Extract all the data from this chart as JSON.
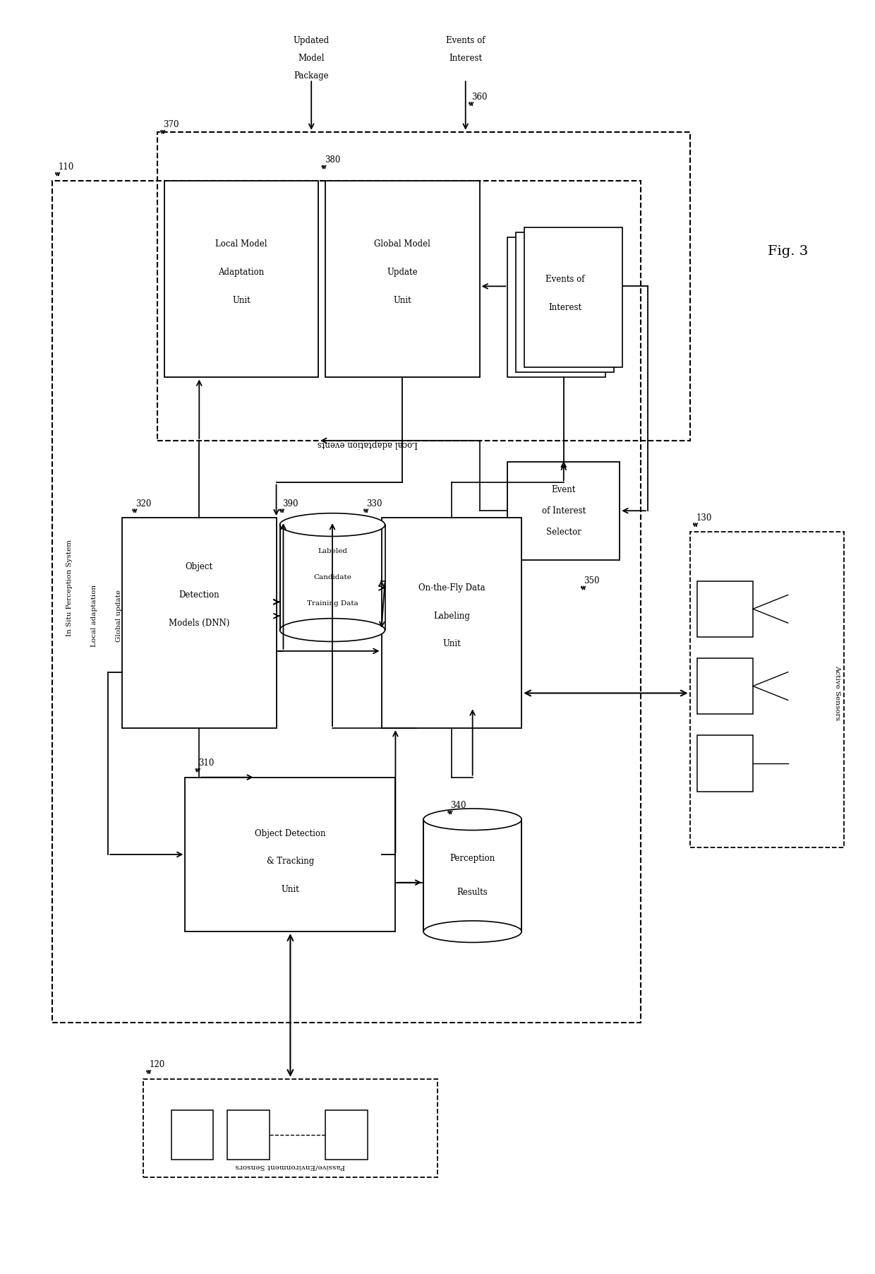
{
  "bg_color": "#ffffff",
  "fig_width": 12.4,
  "fig_height": 18.04,
  "dpi": 100,
  "fig3_label": "Fig. 3",
  "label_110": "110",
  "label_120": "120",
  "label_130": "130",
  "label_310": "310",
  "label_320": "320",
  "label_330": "330",
  "label_340": "340",
  "label_350": "350",
  "label_360": "360",
  "label_370": "370",
  "label_380": "380",
  "label_390": "390",
  "text_insitu": "In Situ Perception System",
  "text_lmau": "Local Model\nAdaptation\nUnit",
  "text_gmuu": "Global Model\nUpdate\nUnit",
  "text_eoi": "Events of\nInterest",
  "text_eois": "Event\nof Interest\nSelector",
  "text_odm": "Object\nDetection\nModels (DNN)",
  "text_lcdt": "Labeled\nCandidate\nTraining Data",
  "text_otf": "On-the-Fly Data\nLabeling\nUnit",
  "text_odtu": "Object Detection\n& Tracking\nUnit",
  "text_pr": "Perception\nResults",
  "text_pes": "Passive/Environment Sensors",
  "text_as": "Active Sensors",
  "text_ump": "Updated\nModel\nPackage",
  "text_eoi_top": "Events of\nInterest",
  "text_la": "Local adaptation",
  "text_gu": "Global update",
  "text_lae": "Local adaptation events"
}
